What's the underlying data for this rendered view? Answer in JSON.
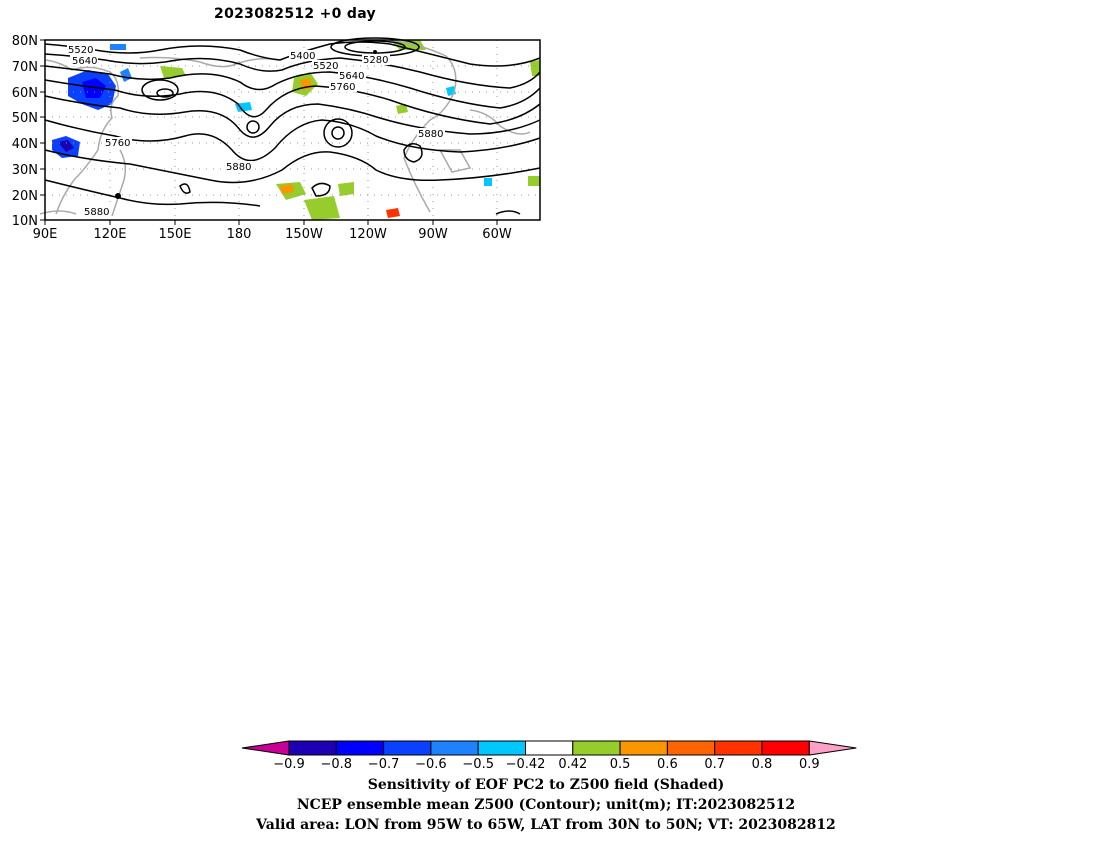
{
  "title": "2023082512  +0 day",
  "map": {
    "lat_labels": [
      "80N",
      "70N",
      "60N",
      "50N",
      "40N",
      "30N",
      "20N",
      "10N"
    ],
    "lon_labels": [
      "90E",
      "120E",
      "150E",
      "180",
      "150W",
      "120W",
      "90W",
      "60W"
    ],
    "contour_labels": [
      "5520",
      "5640",
      "5400",
      "5280",
      "5520",
      "5640",
      "5760",
      "5760",
      "5880",
      "5880",
      "5880"
    ]
  },
  "colorbar": {
    "colors": [
      "#c80096",
      "#1e00b4",
      "#0000ff",
      "#0a41ff",
      "#1e82ff",
      "#00c8ff",
      "#ffffff",
      "#96cd2d",
      "#fa9600",
      "#ff6400",
      "#ff3200",
      "#ff0000",
      "#ffa0c8"
    ],
    "tick_labels": [
      "-0.9",
      "-0.8",
      "-0.7",
      "-0.6",
      "-0.5",
      "-0.42",
      "0.42",
      "0.5",
      "0.6",
      "0.7",
      "0.8",
      "0.9"
    ]
  },
  "captions": [
    "Sensitivity of EOF PC2 to Z500 field (Shaded)",
    "NCEP ensemble mean Z500 (Contour); unit(m); IT:2023082512",
    "Valid area: LON from 95W to 65W, LAT from 30N to 50N; VT: 2023082812"
  ]
}
